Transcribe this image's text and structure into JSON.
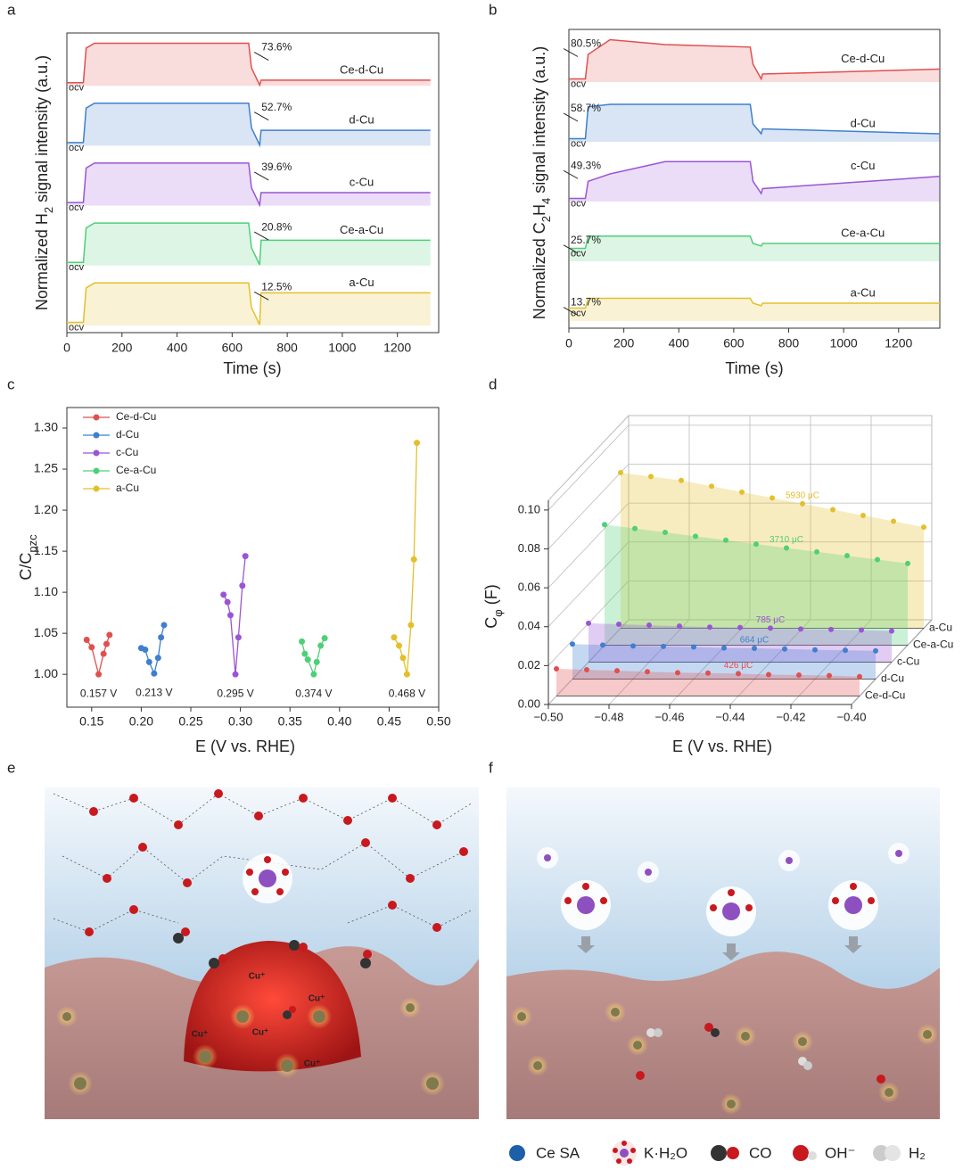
{
  "chart_data": [
    {
      "panel": "a",
      "type": "offset_line",
      "xlabel": "Time (s)",
      "ylabel_parts": [
        "Normalized H",
        "2",
        " signal intensity (a.u.)"
      ],
      "baseline_label": "ocv",
      "x": [
        0,
        60,
        70,
        100,
        660,
        670,
        700,
        705,
        1320
      ],
      "xlim": [
        0,
        1350
      ],
      "xticks": [
        0,
        200,
        400,
        600,
        800,
        1000,
        1200
      ],
      "ylim": [
        0,
        1
      ],
      "series": [
        {
          "name": "Ce-d-Cu",
          "color": "#e0504f",
          "label": "73.6%",
          "values": [
            0.1,
            0.1,
            0.8,
            0.9,
            0.9,
            0.4,
            0.05,
            0.15,
            0.15
          ]
        },
        {
          "name": "d-Cu",
          "color": "#3f7fcf",
          "label": "52.7%",
          "values": [
            0.1,
            0.1,
            0.8,
            0.9,
            0.9,
            0.4,
            0.05,
            0.35,
            0.35
          ]
        },
        {
          "name": "c-Cu",
          "color": "#9a55d6",
          "label": "39.6%",
          "values": [
            0.1,
            0.1,
            0.8,
            0.9,
            0.9,
            0.4,
            0.05,
            0.3,
            0.3
          ]
        },
        {
          "name": "Ce-a-Cu",
          "color": "#4fcf78",
          "label": "20.8%",
          "values": [
            0.1,
            0.1,
            0.8,
            0.9,
            0.9,
            0.4,
            0.05,
            0.55,
            0.55
          ]
        },
        {
          "name": "a-Cu",
          "color": "#e4bf2c",
          "label": "12.5%",
          "values": [
            0.1,
            0.1,
            0.8,
            0.9,
            0.9,
            0.4,
            0.05,
            0.7,
            0.7
          ]
        }
      ]
    },
    {
      "panel": "b",
      "type": "offset_line",
      "xlabel": "Time (s)",
      "ylabel_parts": [
        "Normalized C",
        "2",
        "H",
        "4",
        " signal intensity (a.u.)"
      ],
      "baseline_label": "ocv",
      "x": [
        0,
        60,
        70,
        150,
        350,
        660,
        670,
        700,
        705,
        1350
      ],
      "xlim": [
        0,
        1350
      ],
      "xticks": [
        0,
        200,
        400,
        600,
        800,
        1000,
        1200
      ],
      "ylim": [
        0,
        1
      ],
      "series": [
        {
          "name": "Ce-d-Cu",
          "color": "#e0504f",
          "label": "80.5%",
          "values": [
            0.1,
            0.1,
            0.6,
            0.9,
            0.8,
            0.75,
            0.4,
            0.1,
            0.2,
            0.3
          ]
        },
        {
          "name": "d-Cu",
          "color": "#3f7fcf",
          "label": "58.7%",
          "values": [
            0.1,
            0.1,
            0.75,
            0.8,
            0.8,
            0.8,
            0.4,
            0.2,
            0.3,
            0.2
          ]
        },
        {
          "name": "c-Cu",
          "color": "#9a55d6",
          "label": "49.3%",
          "values": [
            0.1,
            0.1,
            0.45,
            0.6,
            0.85,
            0.85,
            0.45,
            0.2,
            0.3,
            0.55
          ]
        },
        {
          "name": "Ce-a-Cu",
          "color": "#4fcf78",
          "label": "25.7%",
          "values": [
            0.3,
            0.3,
            0.55,
            0.55,
            0.55,
            0.55,
            0.4,
            0.35,
            0.4,
            0.4
          ]
        },
        {
          "name": "a-Cu",
          "color": "#e4bf2c",
          "label": "13.7%",
          "values": [
            0.3,
            0.3,
            0.5,
            0.5,
            0.5,
            0.5,
            0.4,
            0.35,
            0.4,
            0.4
          ]
        }
      ]
    },
    {
      "panel": "c",
      "type": "line_scatter",
      "xlabel": "E (V vs. RHE)",
      "ylabel_parts": [
        "C/C",
        "pzc"
      ],
      "legend": "upper left",
      "xlim": [
        0.125,
        0.5
      ],
      "ylim": [
        0.96,
        1.325
      ],
      "xticks": [
        0.15,
        {
          "value": 0.2,
          "label": "0.20"
        },
        0.25,
        {
          "value": 0.3,
          "label": "0.30"
        },
        0.35,
        {
          "value": 0.4,
          "label": "0.40"
        },
        0.45,
        {
          "value": 0.5,
          "label": "0.50"
        }
      ],
      "yticks": [
        {
          "value": 1,
          "label": "1.00"
        },
        1.05,
        {
          "value": 1.1,
          "label": "1.10"
        },
        1.15,
        {
          "value": 1.2,
          "label": "1.20"
        },
        1.25,
        {
          "value": 1.3,
          "label": "1.30"
        }
      ],
      "series": [
        {
          "name": "Ce-d-Cu",
          "color": "#e0504f",
          "label": "0.157 V",
          "x": [
            0.145,
            0.15,
            0.157,
            0.162,
            0.165,
            0.168
          ],
          "values": [
            1.042,
            1.033,
            1.0,
            1.025,
            1.037,
            1.048
          ]
        },
        {
          "name": "d-Cu",
          "color": "#3f7fcf",
          "label": "0.213 V",
          "x": [
            0.2,
            0.204,
            0.208,
            0.213,
            0.217,
            0.22,
            0.223
          ],
          "values": [
            1.032,
            1.03,
            1.015,
            1.001,
            1.02,
            1.045,
            1.06
          ]
        },
        {
          "name": "c-Cu",
          "color": "#9a55d6",
          "label": "0.295 V",
          "x": [
            0.283,
            0.287,
            0.29,
            0.295,
            0.298,
            0.302,
            0.305
          ],
          "values": [
            1.097,
            1.088,
            1.072,
            1.0,
            1.045,
            1.108,
            1.144
          ]
        },
        {
          "name": "Ce-a-Cu",
          "color": "#4fcf78",
          "label": "0.374 V",
          "x": [
            0.362,
            0.365,
            0.368,
            0.374,
            0.377,
            0.381,
            0.385
          ],
          "values": [
            1.04,
            1.025,
            1.018,
            1.0,
            1.015,
            1.035,
            1.044
          ]
        },
        {
          "name": "a-Cu",
          "color": "#e4bf2c",
          "label": "0.468 V",
          "x": [
            0.455,
            0.46,
            0.464,
            0.468,
            0.472,
            0.475,
            0.478
          ],
          "values": [
            1.045,
            1.035,
            1.02,
            1.0,
            1.06,
            1.14,
            1.282
          ]
        }
      ]
    },
    {
      "panel": "d",
      "type": "surface3d",
      "xlabel": "E (V vs. RHE)",
      "ylabel_parts": [
        "C",
        "φ",
        " (F)"
      ],
      "x": [
        -0.5,
        -0.49,
        -0.48,
        -0.47,
        -0.46,
        -0.45,
        -0.44,
        -0.43,
        -0.42,
        -0.41,
        -0.4
      ],
      "xlim": [
        -0.5,
        -0.4
      ],
      "ylim": [
        0,
        0.105
      ],
      "xticks": [
        {
          "value": -0.5,
          "label": "−0.50"
        },
        {
          "value": -0.48,
          "label": "−0.48"
        },
        {
          "value": -0.46,
          "label": "−0.46"
        },
        {
          "value": -0.44,
          "label": "−0.44"
        },
        {
          "value": -0.42,
          "label": "−0.42"
        },
        {
          "value": -0.4,
          "label": "−0.40"
        }
      ],
      "yticks": [
        {
          "value": 0,
          "label": "0.00"
        },
        0.02,
        0.04,
        0.06,
        0.08,
        {
          "value": 0.1,
          "label": "0.10"
        }
      ],
      "series": [
        {
          "name": "Ce-d-Cu",
          "color": "#e0504f",
          "label": "426 μC",
          "values": [
            0.014,
            0.0135,
            0.013,
            0.0125,
            0.012,
            0.0118,
            0.0115,
            0.011,
            0.0108,
            0.0105,
            0.01
          ]
        },
        {
          "name": "d-Cu",
          "color": "#3f7fcf",
          "label": "664 μC",
          "values": [
            0.018,
            0.0175,
            0.017,
            0.0168,
            0.0165,
            0.016,
            0.0158,
            0.0155,
            0.015,
            0.0148,
            0.0145
          ]
        },
        {
          "name": "c-Cu",
          "color": "#9a55d6",
          "label": "785 μC",
          "values": [
            0.02,
            0.0195,
            0.019,
            0.0185,
            0.018,
            0.0178,
            0.0175,
            0.017,
            0.0168,
            0.0165,
            0.016
          ]
        },
        {
          "name": "Ce-a-Cu",
          "color": "#4fcf78",
          "label": "3710 μC",
          "values": [
            0.062,
            0.06,
            0.058,
            0.056,
            0.054,
            0.052,
            0.05,
            0.048,
            0.046,
            0.044,
            0.042
          ]
        },
        {
          "name": "a-Cu",
          "color": "#e4bf2c",
          "label": "5930 μC",
          "values": [
            0.08,
            0.078,
            0.076,
            0.073,
            0.07,
            0.067,
            0.064,
            0.061,
            0.058,
            0.055,
            0.052
          ]
        }
      ]
    }
  ],
  "illustrations": {
    "e": {
      "panel": "e",
      "labels": [
        "Cu⁺",
        "Cu⁺",
        "Cu⁺",
        "Cu⁺",
        "Cu⁺"
      ]
    },
    "f": {
      "panel": "f"
    },
    "legend": [
      "Ce SA",
      "K·H₂O",
      "CO",
      "OH⁻",
      "H₂"
    ]
  }
}
